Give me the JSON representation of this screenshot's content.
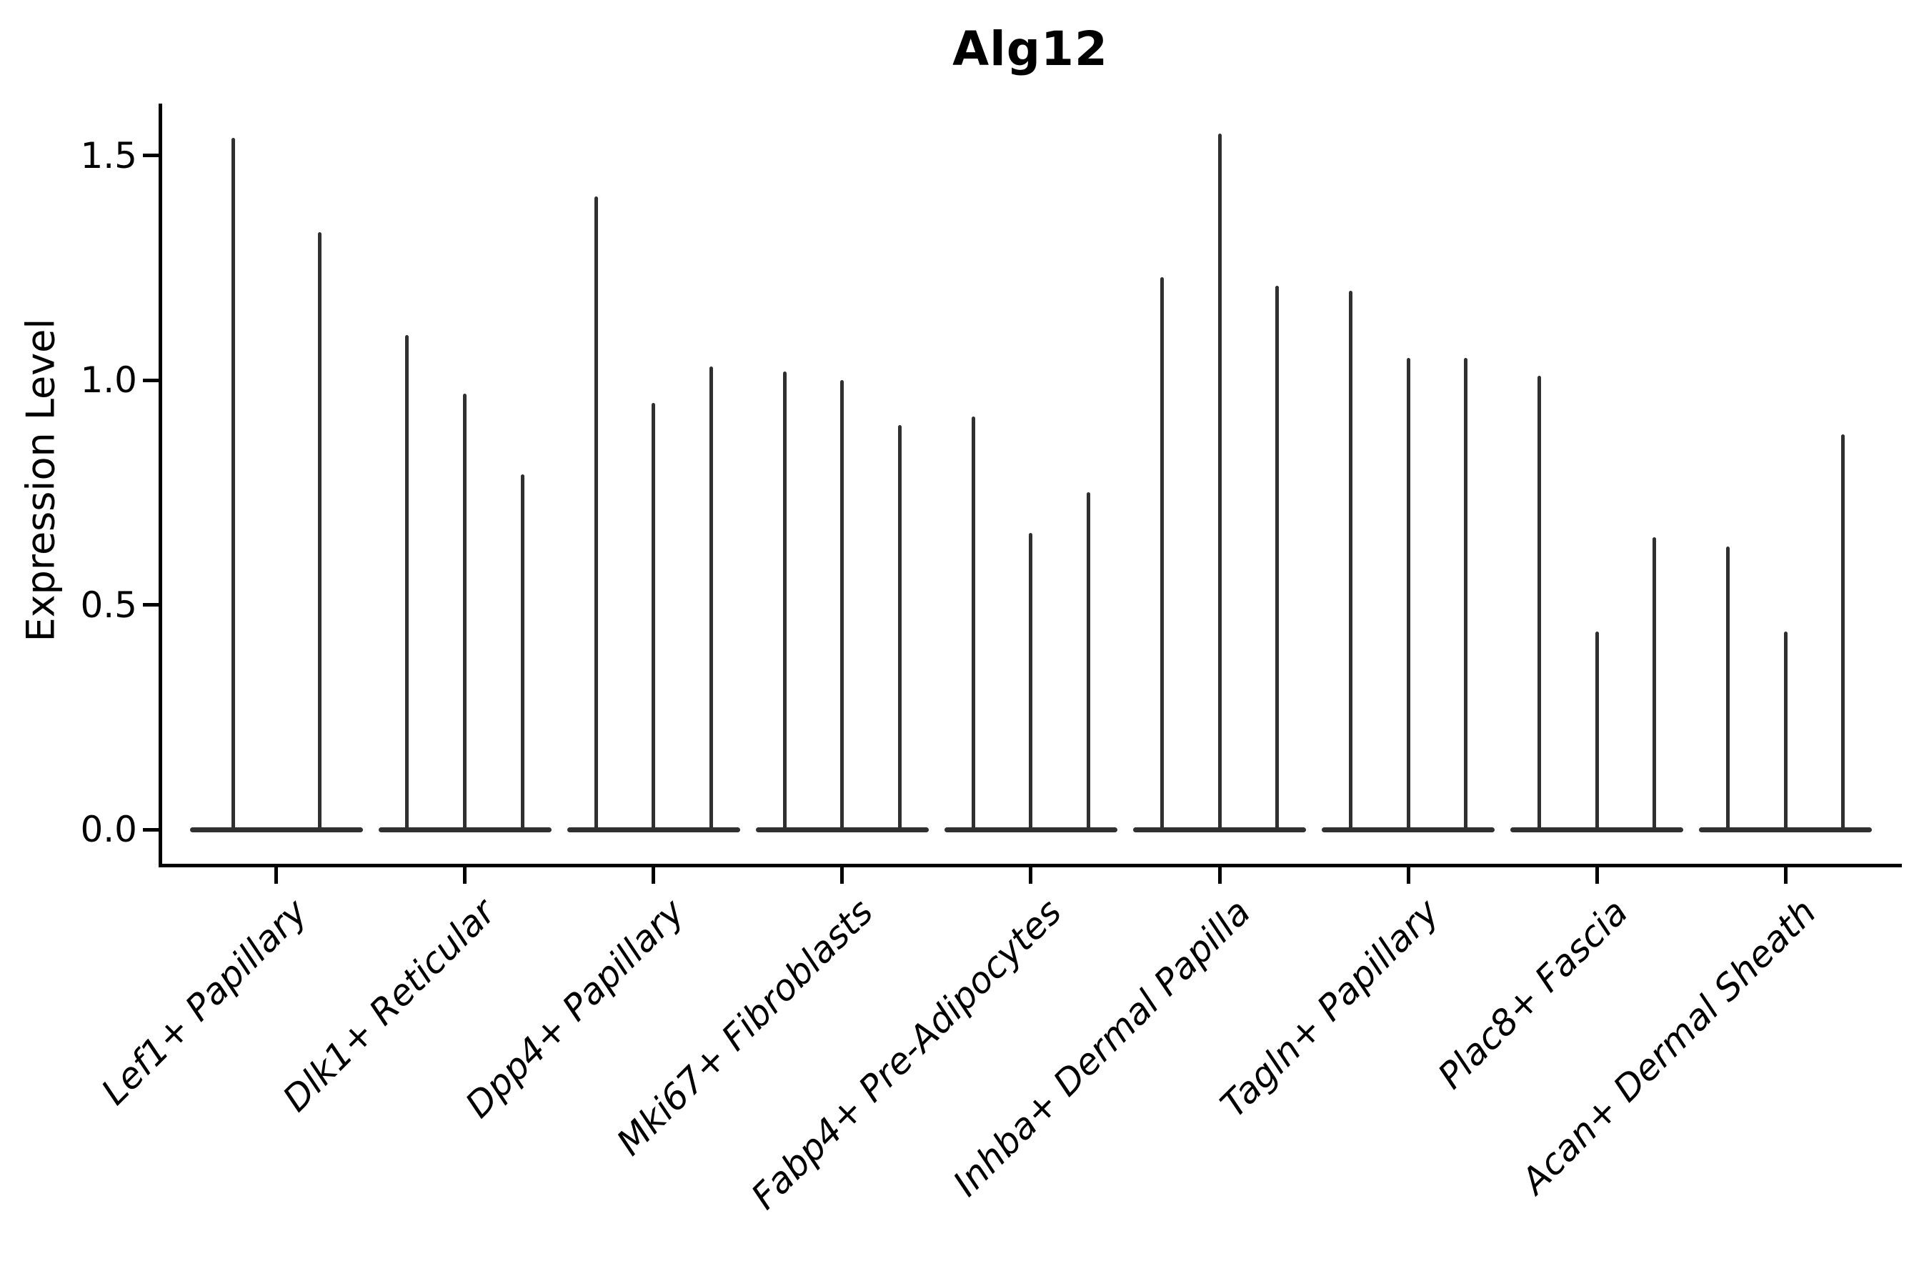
{
  "figure": {
    "background": "#ffffff",
    "axis_color": "#000000",
    "violin_color": "#303030"
  },
  "title": "Alg12",
  "y_axis": {
    "label": "Expression Level",
    "tick_labels": [
      "0.0",
      "0.5",
      "1.0",
      "1.5"
    ],
    "tick_values": [
      0.0,
      0.5,
      1.0,
      1.5
    ]
  },
  "chart_data": {
    "type": "violin",
    "title": "Alg12",
    "xlabel": "",
    "ylabel": "Expression Level",
    "ylim": [
      -0.08,
      1.62
    ],
    "yticks": [
      0.0,
      0.5,
      1.0,
      1.5
    ],
    "grid": false,
    "legend_position": "none",
    "layout_hint": "9 cell-type groups on x-axis; each group contains 2-3 needle-thin violins (max expression spikes) sitting on a flat base at 0; x tick labels rotated 45deg italic; only left and bottom spines drawn",
    "categories": [
      "Lef1+ Papillary",
      "Dlk1+ Reticular",
      "Dpp4+ Papillary",
      "Mki67+ Fibroblasts",
      "Fabp4+ Pre-Adipocytes",
      "Inhba+ Dermal Papilla",
      "Tagln+ Papillary",
      "Plac8+ Fascia",
      "Acan+ Dermal Sheath"
    ],
    "series": [
      {
        "category": "Lef1+ Papillary",
        "violin_maxima": [
          1.54,
          1.33
        ]
      },
      {
        "category": "Dlk1+ Reticular",
        "violin_maxima": [
          1.1,
          0.97,
          0.79
        ]
      },
      {
        "category": "Dpp4+ Papillary",
        "violin_maxima": [
          1.41,
          0.95,
          1.03
        ]
      },
      {
        "category": "Mki67+ Fibroblasts",
        "violin_maxima": [
          1.02,
          1.0,
          0.9
        ]
      },
      {
        "category": "Fabp4+ Pre-Adipocytes",
        "violin_maxima": [
          0.92,
          0.66,
          0.75
        ]
      },
      {
        "category": "Inhba+ Dermal Papilla",
        "violin_maxima": [
          1.23,
          1.55,
          1.21
        ]
      },
      {
        "category": "Tagln+ Papillary",
        "violin_maxima": [
          1.2,
          1.05,
          1.05
        ]
      },
      {
        "category": "Plac8+ Fascia",
        "violin_maxima": [
          1.01,
          0.44,
          0.65
        ]
      },
      {
        "category": "Acan+ Dermal Sheath",
        "violin_maxima": [
          0.63,
          0.44,
          0.88
        ]
      }
    ]
  }
}
